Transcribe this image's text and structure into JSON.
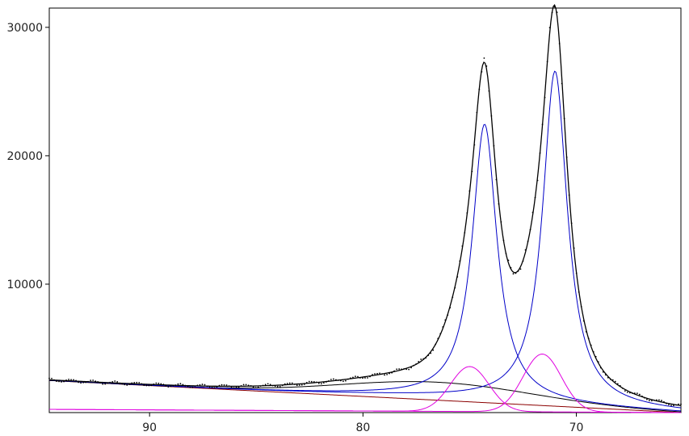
{
  "chart_data": {
    "type": "line",
    "title": "",
    "xlabel": "",
    "ylabel": "",
    "x_reversed": true,
    "xlim": [
      94.7,
      65.1
    ],
    "ylim": [
      0,
      31500
    ],
    "xticks": [
      {
        "value": 90,
        "label": "90"
      },
      {
        "value": 80,
        "label": "80"
      },
      {
        "value": 70,
        "label": "70"
      }
    ],
    "yticks": [
      {
        "value": 10000,
        "label": "10000"
      },
      {
        "value": 20000,
        "label": "20000"
      },
      {
        "value": 30000,
        "label": "30000"
      }
    ],
    "grid": false,
    "legend": "none",
    "background": {
      "color": "#8b0000",
      "x": [
        94.7,
        65.1
      ],
      "y": [
        2500,
        0
      ]
    },
    "peaks": [
      {
        "center": 74.3,
        "height": 21500,
        "width": 0.7,
        "color": "#0000c8"
      },
      {
        "center": 71.0,
        "height": 26000,
        "width": 0.7,
        "color": "#0000c8"
      },
      {
        "center": 75.0,
        "height": 3500,
        "width": 0.9,
        "color": "#e000e0"
      },
      {
        "center": 71.6,
        "height": 4500,
        "width": 0.9,
        "color": "#e000e0"
      }
    ],
    "shoulder": {
      "color": "#000000",
      "center": 76.5,
      "height": 1400,
      "width": 4.5
    },
    "envelope_color": "#000000",
    "data_points_color": "#000000"
  }
}
